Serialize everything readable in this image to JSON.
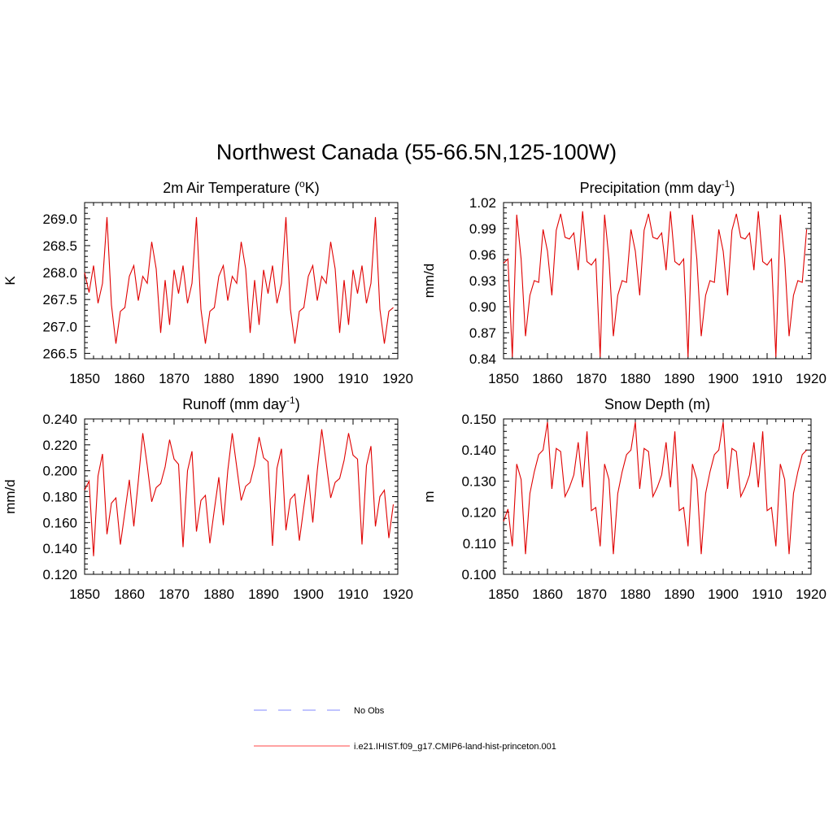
{
  "figure": {
    "title": "Northwest Canada (55-66.5N,125-100W)"
  },
  "legend": {
    "entries": [
      {
        "label": "No Obs",
        "style": "dashed",
        "color": "#9aa0ff"
      },
      {
        "label": "i.e21.IHIST.f09_g17.CMIP6-land-hist-princeton.001",
        "style": "solid",
        "color": "#ff6a6a"
      }
    ]
  },
  "chart_data": [
    {
      "type": "line",
      "title": "2m Air Temperature (°K)",
      "title_parts": [
        "2m Air Temperature (",
        "o",
        "K)"
      ],
      "ylabel": "K",
      "xlim": [
        1850,
        1920
      ],
      "ylim": [
        266.4,
        269.3
      ],
      "x_ticks": [
        1850,
        1860,
        1870,
        1880,
        1890,
        1900,
        1910,
        1920
      ],
      "y_ticks": [
        266.5,
        267.0,
        267.5,
        268.0,
        268.5,
        269.0
      ],
      "y_tick_labels": [
        "266.5",
        "267.0",
        "267.5",
        "268.0",
        "268.5",
        "269.0"
      ],
      "x_start": 1850,
      "series": [
        {
          "color": "#e00000",
          "values": [
            268.0,
            267.63,
            268.13,
            267.43,
            267.8,
            269.03,
            267.4,
            266.68,
            267.28,
            267.35,
            267.93,
            268.13,
            267.48,
            267.93,
            267.8,
            268.57,
            268.07,
            266.88,
            267.86,
            267.03,
            268.05,
            267.61,
            268.13,
            267.43,
            267.8,
            269.03,
            267.32,
            266.68,
            267.28,
            267.35,
            267.93,
            268.13,
            267.48,
            267.93,
            267.8,
            268.57,
            268.07,
            266.88,
            267.86,
            267.03,
            268.05,
            267.61,
            268.13,
            267.43,
            267.8,
            269.03,
            267.32,
            266.68,
            267.28,
            267.35,
            267.93,
            268.13,
            267.48,
            267.93,
            267.8,
            268.57,
            268.07,
            266.88,
            267.86,
            267.03,
            268.05,
            267.61,
            268.13,
            267.43,
            267.8,
            269.03,
            267.32,
            266.68,
            267.28,
            267.35
          ]
        }
      ]
    },
    {
      "type": "line",
      "title": "Precipitation (mm day-1)",
      "title_parts": [
        "Precipitation (mm day",
        "-1",
        ")"
      ],
      "ylabel": "mm/d",
      "xlim": [
        1850,
        1920
      ],
      "ylim": [
        0.84,
        1.02
      ],
      "x_ticks": [
        1850,
        1860,
        1870,
        1880,
        1890,
        1900,
        1910,
        1920
      ],
      "y_ticks": [
        0.84,
        0.87,
        0.9,
        0.93,
        0.96,
        0.99,
        1.02
      ],
      "y_tick_labels": [
        "0.84",
        "0.87",
        "0.90",
        "0.93",
        "0.96",
        "0.99",
        "1.02"
      ],
      "x_start": 1850,
      "series": [
        {
          "color": "#e00000",
          "values": [
            0.95,
            0.955,
            0.842,
            1.006,
            0.955,
            0.866,
            0.913,
            0.93,
            0.928,
            0.989,
            0.964,
            0.913,
            0.988,
            1.007,
            0.98,
            0.978,
            0.985,
            0.942,
            1.01,
            0.952,
            0.948,
            0.955,
            0.842,
            1.006,
            0.955,
            0.866,
            0.913,
            0.93,
            0.928,
            0.989,
            0.964,
            0.913,
            0.988,
            1.007,
            0.98,
            0.978,
            0.985,
            0.942,
            1.01,
            0.952,
            0.948,
            0.955,
            0.842,
            1.006,
            0.955,
            0.866,
            0.913,
            0.93,
            0.928,
            0.989,
            0.964,
            0.913,
            0.988,
            1.007,
            0.98,
            0.978,
            0.985,
            0.942,
            1.01,
            0.952,
            0.948,
            0.955,
            0.842,
            1.006,
            0.955,
            0.866,
            0.913,
            0.93,
            0.928,
            0.989
          ]
        }
      ]
    },
    {
      "type": "line",
      "title": "Runoff (mm day-1)",
      "title_parts": [
        "Runoff (mm day",
        "-1",
        ")"
      ],
      "ylabel": "mm/d",
      "xlim": [
        1850,
        1920
      ],
      "ylim": [
        0.12,
        0.24
      ],
      "x_ticks": [
        1850,
        1860,
        1870,
        1880,
        1890,
        1900,
        1910,
        1920
      ],
      "y_ticks": [
        0.12,
        0.14,
        0.16,
        0.18,
        0.2,
        0.22,
        0.24
      ],
      "y_tick_labels": [
        "0.120",
        "0.140",
        "0.160",
        "0.180",
        "0.200",
        "0.220",
        "0.240"
      ],
      "x_start": 1850,
      "series": [
        {
          "color": "#e00000",
          "values": [
            0.185,
            0.192,
            0.134,
            0.196,
            0.213,
            0.151,
            0.175,
            0.179,
            0.143,
            0.168,
            0.193,
            0.157,
            0.192,
            0.229,
            0.204,
            0.176,
            0.187,
            0.19,
            0.203,
            0.224,
            0.209,
            0.205,
            0.141,
            0.2,
            0.215,
            0.153,
            0.177,
            0.181,
            0.144,
            0.17,
            0.195,
            0.158,
            0.2,
            0.229,
            0.203,
            0.177,
            0.188,
            0.191,
            0.205,
            0.226,
            0.21,
            0.207,
            0.142,
            0.202,
            0.217,
            0.154,
            0.178,
            0.182,
            0.146,
            0.172,
            0.197,
            0.16,
            0.2,
            0.232,
            0.206,
            0.179,
            0.191,
            0.194,
            0.208,
            0.229,
            0.212,
            0.209,
            0.143,
            0.204,
            0.219,
            0.157,
            0.18,
            0.185,
            0.148,
            0.174
          ]
        }
      ]
    },
    {
      "type": "line",
      "title": "Snow Depth (m)",
      "title_parts": [
        "Snow Depth (m)"
      ],
      "ylabel": "m",
      "xlim": [
        1850,
        1920
      ],
      "ylim": [
        0.1,
        0.15
      ],
      "x_ticks": [
        1850,
        1860,
        1870,
        1880,
        1890,
        1900,
        1910,
        1920
      ],
      "y_ticks": [
        0.1,
        0.11,
        0.12,
        0.13,
        0.14,
        0.15
      ],
      "y_tick_labels": [
        "0.100",
        "0.110",
        "0.120",
        "0.130",
        "0.140",
        "0.150"
      ],
      "x_start": 1850,
      "series": [
        {
          "color": "#e00000",
          "values": [
            0.117,
            0.121,
            0.109,
            0.1355,
            0.1305,
            0.1065,
            0.126,
            0.133,
            0.1385,
            0.14,
            0.149,
            0.1275,
            0.1405,
            0.1395,
            0.125,
            0.128,
            0.132,
            0.1425,
            0.128,
            0.146,
            0.1205,
            0.1215,
            0.109,
            0.1355,
            0.1305,
            0.1065,
            0.126,
            0.133,
            0.1385,
            0.14,
            0.149,
            0.1275,
            0.1405,
            0.1395,
            0.125,
            0.128,
            0.132,
            0.1425,
            0.128,
            0.146,
            0.1205,
            0.1215,
            0.109,
            0.1355,
            0.1305,
            0.1065,
            0.126,
            0.133,
            0.1385,
            0.14,
            0.149,
            0.1275,
            0.1405,
            0.1395,
            0.125,
            0.128,
            0.132,
            0.1425,
            0.128,
            0.146,
            0.1205,
            0.1215,
            0.109,
            0.1355,
            0.1305,
            0.1065,
            0.126,
            0.133,
            0.1385,
            0.14
          ]
        }
      ]
    }
  ]
}
